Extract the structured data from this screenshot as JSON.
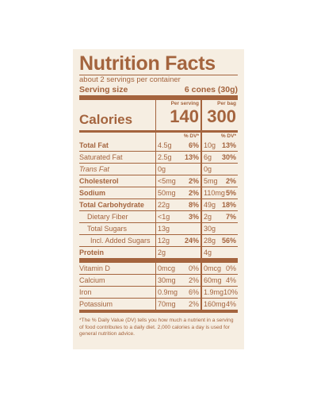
{
  "title": "Nutrition Facts",
  "servings": "about 2 servings per container",
  "serving_size": {
    "label": "Serving size",
    "value": "6 cones (30g)"
  },
  "calories": {
    "label": "Calories",
    "per_serving_header": "Per serving",
    "per_bag_header": "Per bag",
    "per_serving": "140",
    "per_bag": "300"
  },
  "dv_headers": [
    "% DV*",
    "% DV*"
  ],
  "nutrients": [
    [
      "Total Fat",
      "4.5g",
      "6%",
      "10g",
      "13%"
    ],
    [
      "Saturated Fat",
      "2.5g",
      "13%",
      "6g",
      "30%"
    ],
    [
      "Trans Fat",
      "0g",
      "",
      "0g",
      ""
    ],
    [
      "Cholesterol",
      "<5mg",
      "2%",
      "5mg",
      "2%"
    ],
    [
      "Sodium",
      "50mg",
      "2%",
      "110mg",
      "5%"
    ],
    [
      "Total Carbohydrate",
      "22g",
      "8%",
      "49g",
      "18%"
    ],
    [
      "Dietary Fiber",
      "<1g",
      "3%",
      "2g",
      "7%"
    ],
    [
      "Total Sugars",
      "13g",
      "",
      "30g",
      ""
    ],
    [
      "Incl. Added Sugars",
      "12g",
      "24%",
      "28g",
      "56%"
    ],
    [
      "Protein",
      "2g",
      "",
      "4g",
      ""
    ]
  ],
  "vitamins": [
    [
      "Vitamin D",
      "0mcg",
      "0%",
      "0mcg",
      "0%"
    ],
    [
      "Calcium",
      "30mg",
      "2%",
      "60mg",
      "4%"
    ],
    [
      "Iron",
      "0.9mg",
      "6%",
      "1.9mg",
      "10%"
    ],
    [
      "Potassium",
      "70mg",
      "2%",
      "160mg",
      "4%"
    ]
  ],
  "footnote": "*The % Daily Value (DV) tells you how much a nutrient in a serving of food contributes to a daily diet. 2,000 calories a day is used for general nutrition advice."
}
